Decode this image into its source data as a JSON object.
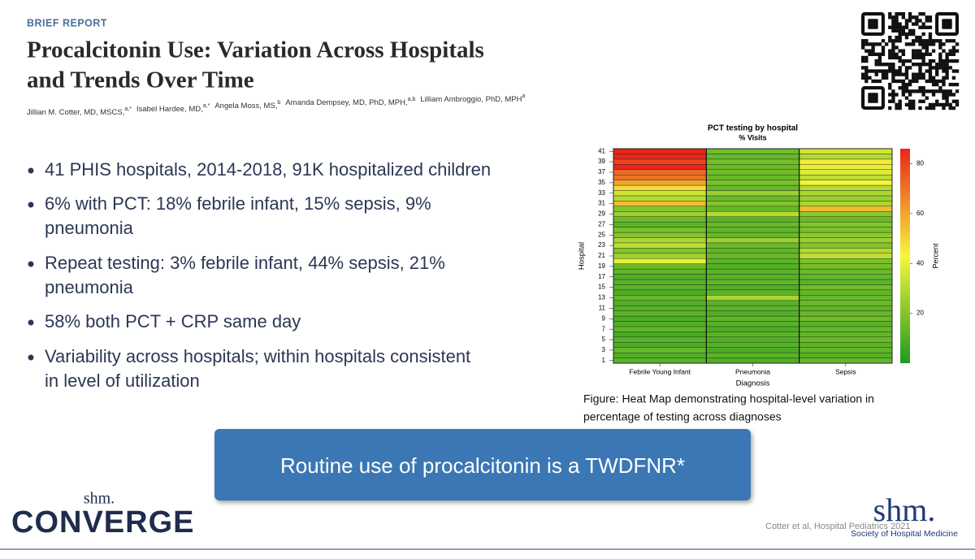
{
  "header": {
    "label": "BRIEF REPORT",
    "title": [
      "Procalcitonin Use: Variation Across Hospitals",
      "and Trends Over Time"
    ],
    "authors": [
      {
        "name": "Jillian M. Cotter, MD, MSCS,",
        "sup": "a,*"
      },
      {
        "name": "Isabel Hardee, MD,",
        "sup": "a,*"
      },
      {
        "name": "Angela Moss, MS,",
        "sup": "b"
      },
      {
        "name": "Amanda Dempsey, MD, PhD, MPH,",
        "sup": "a,b"
      },
      {
        "name": "Lilliam Ambroggio, PhD, MPH",
        "sup": "a"
      }
    ]
  },
  "bullets": [
    [
      "41 PHIS hospitals, 2014-2018, 91K hospitalized children"
    ],
    [
      "6% with PCT: 18% febrile infant, 15% sepsis, 9%",
      "pneumonia"
    ],
    [
      "Repeat testing: 3% febrile infant, 44% sepsis, 21%",
      "pneumonia"
    ],
    [
      "58% both PCT + CRP same day"
    ],
    [
      "Variability across hospitals; within hospitals consistent",
      "in level of utilization"
    ]
  ],
  "chart_data": {
    "type": "heatmap",
    "title": "PCT testing by hospital",
    "subtitle": "% Visits",
    "x_label": "Diagnosis",
    "y_label": "Hospital",
    "categories": [
      "Febrile Young Infant",
      "Pneumonia",
      "Sepsis"
    ],
    "y_categories": [
      1,
      null,
      3,
      null,
      5,
      null,
      7,
      null,
      9,
      null,
      11,
      null,
      13,
      null,
      15,
      null,
      17,
      null,
      19,
      null,
      21,
      null,
      23,
      null,
      25,
      null,
      27,
      null,
      29,
      null,
      31,
      null,
      33,
      null,
      35,
      null,
      37,
      null,
      39,
      null,
      41
    ],
    "values": [
      [
        12,
        10,
        14
      ],
      [
        10,
        12,
        11
      ],
      [
        14,
        9,
        13
      ],
      [
        9,
        11,
        12
      ],
      [
        11,
        10,
        15
      ],
      [
        8,
        12,
        13
      ],
      [
        13,
        9,
        14
      ],
      [
        10,
        11,
        12
      ],
      [
        9,
        13,
        16
      ],
      [
        12,
        10,
        14
      ],
      [
        11,
        12,
        13
      ],
      [
        10,
        11,
        15
      ],
      [
        14,
        28,
        14
      ],
      [
        9,
        12,
        13
      ],
      [
        12,
        10,
        16
      ],
      [
        11,
        13,
        12
      ],
      [
        10,
        11,
        14
      ],
      [
        13,
        12,
        15
      ],
      [
        15,
        10,
        17
      ],
      [
        40,
        12,
        18
      ],
      [
        25,
        14,
        32
      ],
      [
        20,
        13,
        30
      ],
      [
        32,
        15,
        20
      ],
      [
        28,
        25,
        25
      ],
      [
        20,
        14,
        22
      ],
      [
        18,
        13,
        18
      ],
      [
        12,
        15,
        20
      ],
      [
        15,
        12,
        15
      ],
      [
        25,
        30,
        22
      ],
      [
        20,
        14,
        55
      ],
      [
        55,
        20,
        28
      ],
      [
        30,
        15,
        25
      ],
      [
        35,
        25,
        28
      ],
      [
        48,
        14,
        30
      ],
      [
        60,
        18,
        42
      ],
      [
        70,
        15,
        32
      ],
      [
        72,
        16,
        38
      ],
      [
        86,
        15,
        40
      ],
      [
        80,
        17,
        45
      ],
      [
        86,
        14,
        30
      ],
      [
        86,
        16,
        35
      ]
    ],
    "colorbar_label": "Percent",
    "zlim": [
      0,
      86
    ],
    "zticks": [
      20,
      40,
      60,
      80
    ],
    "colorscale": [
      "#1f9a1f",
      "#f6f63a",
      "#e8261a"
    ]
  },
  "caption": [
    "Figure: Heat Map demonstrating hospital-level variation in",
    "percentage of testing across diagnoses"
  ],
  "banner": "Routine use of procalcitonin is a TWDFNR*",
  "logos": {
    "converge_small": "shm.",
    "converge": "CONVERGE",
    "shm": "shm.",
    "shm_name": "Society of Hospital Medicine"
  },
  "citation": "Cotter et al, Hospital Pediatrics 2021"
}
